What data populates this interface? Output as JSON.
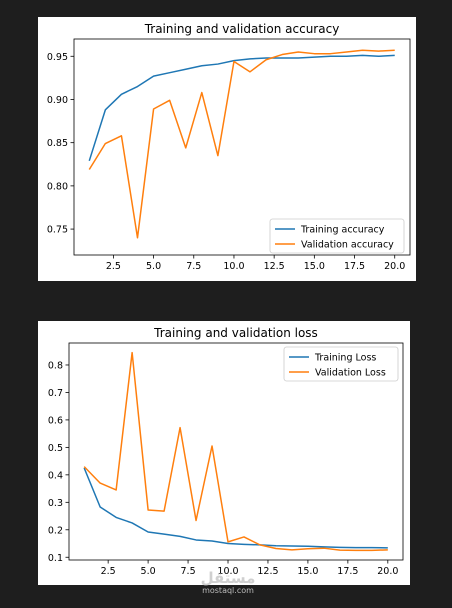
{
  "chart_data": [
    {
      "type": "line",
      "title": "Training and validation accuracy",
      "xlabel": "",
      "ylabel": "",
      "x": [
        1,
        2,
        3,
        4,
        5,
        6,
        7,
        8,
        9,
        10,
        11,
        12,
        13,
        14,
        15,
        16,
        17,
        18,
        19,
        20
      ],
      "xlim": [
        0.05,
        20.95
      ],
      "ylim": [
        0.72,
        0.97
      ],
      "xticks": [
        2.5,
        5.0,
        7.5,
        10.0,
        12.5,
        15.0,
        17.5,
        20.0
      ],
      "xtick_labels": [
        "2.5",
        "5.0",
        "7.5",
        "10.0",
        "12.5",
        "15.0",
        "17.5",
        "20.0"
      ],
      "yticks": [
        0.75,
        0.8,
        0.85,
        0.9,
        0.95
      ],
      "ytick_labels": [
        "0.75",
        "0.80",
        "0.85",
        "0.90",
        "0.95"
      ],
      "grid": false,
      "legend": "lower right",
      "series": [
        {
          "name": "Training accuracy",
          "color": "#1f77b4",
          "values": [
            0.829,
            0.888,
            0.906,
            0.915,
            0.927,
            0.931,
            0.935,
            0.939,
            0.941,
            0.945,
            0.947,
            0.948,
            0.948,
            0.948,
            0.949,
            0.95,
            0.95,
            0.951,
            0.95,
            0.951
          ]
        },
        {
          "name": "Validation accuracy",
          "color": "#ff7f0e",
          "values": [
            0.819,
            0.849,
            0.858,
            0.74,
            0.889,
            0.899,
            0.844,
            0.908,
            0.835,
            0.944,
            0.932,
            0.946,
            0.952,
            0.955,
            0.953,
            0.953,
            0.955,
            0.957,
            0.956,
            0.957
          ]
        }
      ]
    },
    {
      "type": "line",
      "title": "Training and validation loss",
      "xlabel": "",
      "ylabel": "",
      "x": [
        1,
        2,
        3,
        4,
        5,
        6,
        7,
        8,
        9,
        10,
        11,
        12,
        13,
        14,
        15,
        16,
        17,
        18,
        19,
        20
      ],
      "xlim": [
        0.05,
        20.95
      ],
      "ylim": [
        0.09,
        0.88
      ],
      "xticks": [
        2.5,
        5.0,
        7.5,
        10.0,
        12.5,
        15.0,
        17.5,
        20.0
      ],
      "xtick_labels": [
        "2.5",
        "5.0",
        "7.5",
        "10.0",
        "12.5",
        "15.0",
        "17.5",
        "20.0"
      ],
      "yticks": [
        0.1,
        0.2,
        0.3,
        0.4,
        0.5,
        0.6,
        0.7,
        0.8
      ],
      "ytick_labels": [
        "0.1",
        "0.2",
        "0.3",
        "0.4",
        "0.5",
        "0.6",
        "0.7",
        "0.8"
      ],
      "grid": false,
      "legend": "upper right",
      "series": [
        {
          "name": "Training Loss",
          "color": "#1f77b4",
          "values": [
            0.425,
            0.283,
            0.245,
            0.225,
            0.192,
            0.184,
            0.176,
            0.163,
            0.159,
            0.15,
            0.147,
            0.145,
            0.142,
            0.141,
            0.14,
            0.138,
            0.136,
            0.135,
            0.135,
            0.134
          ]
        },
        {
          "name": "Validation Loss",
          "color": "#ff7f0e",
          "values": [
            0.43,
            0.37,
            0.345,
            0.845,
            0.272,
            0.268,
            0.572,
            0.234,
            0.505,
            0.156,
            0.174,
            0.145,
            0.132,
            0.127,
            0.131,
            0.133,
            0.126,
            0.125,
            0.125,
            0.127
          ]
        }
      ]
    }
  ],
  "watermark": {
    "logo": "مستقل",
    "site": "mostaql.com"
  }
}
